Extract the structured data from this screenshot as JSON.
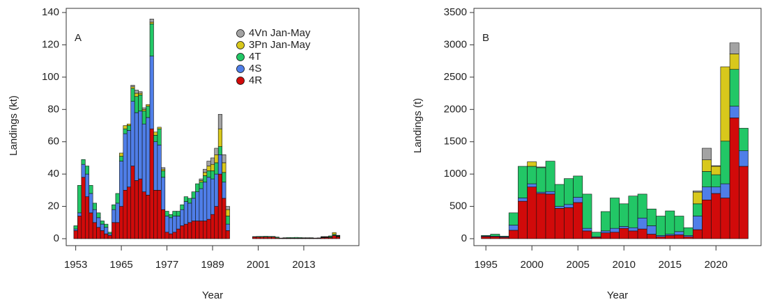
{
  "chart_data": [
    {
      "type": "bar",
      "stacked": true,
      "annotation": "A",
      "xlabel": "Year",
      "ylabel": "Landings (kt)",
      "legend": "top-right",
      "x": [
        1953,
        1954,
        1955,
        1956,
        1957,
        1958,
        1959,
        1960,
        1961,
        1962,
        1963,
        1964,
        1965,
        1966,
        1967,
        1968,
        1969,
        1970,
        1971,
        1972,
        1973,
        1974,
        1975,
        1976,
        1977,
        1978,
        1979,
        1980,
        1981,
        1982,
        1983,
        1984,
        1985,
        1986,
        1987,
        1988,
        1989,
        1990,
        1991,
        1992,
        1993,
        1994,
        1995,
        1996,
        1997,
        1998,
        1999,
        2000,
        2001,
        2002,
        2003,
        2004,
        2005,
        2006,
        2007,
        2008,
        2009,
        2010,
        2011,
        2012,
        2013,
        2014,
        2015,
        2016,
        2017,
        2018,
        2019,
        2020,
        2021,
        2022
      ],
      "xlim": [
        1950.5,
        2027.5
      ],
      "xticks": [
        1953,
        1965,
        1977,
        1989,
        2001,
        2013
      ],
      "ylim": [
        0,
        140
      ],
      "yticks": [
        0,
        20,
        40,
        60,
        80,
        100,
        120,
        140
      ],
      "series": [
        {
          "name": "4R",
          "color": "#d10a0a",
          "values": [
            5,
            14,
            38,
            26,
            16,
            10,
            7,
            5,
            3,
            2,
            10,
            10,
            20,
            30,
            32,
            45,
            36,
            37,
            29,
            27,
            68,
            30,
            30,
            18,
            4,
            3,
            4,
            6,
            8,
            9,
            10,
            11,
            11,
            11,
            11,
            12,
            15,
            20,
            40,
            25,
            5,
            null,
            null,
            null,
            null,
            null,
            null,
            1,
            1,
            1,
            1,
            1,
            1,
            0.5,
            0.3,
            0.3,
            0.3,
            0.3,
            0.3,
            0.3,
            0.3,
            0.3,
            0.3,
            0.3,
            0.3,
            0.6,
            0.7,
            0.7,
            1.9,
            1.1
          ]
        },
        {
          "name": "4S",
          "color": "#4f7ee8",
          "values": [
            1,
            2,
            8,
            14,
            12,
            8,
            6,
            4,
            4,
            1,
            8,
            12,
            28,
            35,
            35,
            40,
            42,
            42,
            42,
            48,
            45,
            30,
            28,
            20,
            10,
            10,
            10,
            8,
            10,
            14,
            12,
            14,
            18,
            20,
            24,
            26,
            22,
            20,
            12,
            10,
            4,
            null,
            null,
            null,
            null,
            null,
            null,
            0,
            0,
            0,
            0,
            0,
            0,
            0,
            0,
            0,
            0,
            0,
            0,
            0,
            0,
            0,
            0,
            0,
            0,
            0.2,
            0.1,
            0.2,
            0.2,
            0.2
          ]
        },
        {
          "name": "4T",
          "color": "#22c766",
          "values": [
            2,
            17,
            3,
            5,
            5,
            4,
            3,
            2,
            2,
            1,
            3,
            6,
            3,
            3,
            3,
            8,
            10,
            10,
            8,
            7,
            20,
            4,
            10,
            4,
            3,
            2,
            3,
            3,
            3,
            3,
            3,
            4,
            5,
            4,
            4,
            4,
            5,
            7,
            5,
            6,
            5,
            null,
            null,
            null,
            null,
            null,
            null,
            0.3,
            0.4,
            0.4,
            0.5,
            0.4,
            0.4,
            0.5,
            0.1,
            0.3,
            0.4,
            0.4,
            0.5,
            0.4,
            0.3,
            0.3,
            0.3,
            0.1,
            0.2,
            0.3,
            0.2,
            0.7,
            0.6,
            0.4
          ]
        },
        {
          "name": "3Pn Jan-May",
          "color": "#d8c81c",
          "values": [
            0,
            0,
            0,
            0,
            0,
            0,
            0,
            0,
            0,
            0,
            0,
            0,
            2,
            2,
            1,
            1,
            2,
            1,
            1,
            1,
            1,
            2,
            1,
            1,
            0,
            0,
            0,
            0,
            0,
            0,
            0,
            0,
            0,
            1,
            2,
            3,
            4,
            5,
            11,
            6,
            4,
            null,
            null,
            null,
            null,
            null,
            null,
            0,
            0,
            0,
            0,
            0,
            0,
            0,
            0,
            0,
            0,
            0,
            0,
            0,
            0,
            0,
            0,
            0,
            0,
            0.2,
            0.1,
            0.1,
            1.1,
            0.2
          ]
        },
        {
          "name": "4Vn Jan-May",
          "color": "#a3a3a3",
          "values": [
            0,
            0,
            0,
            0,
            0,
            0,
            0,
            0,
            0,
            0,
            0,
            0,
            0,
            0,
            0,
            1,
            2,
            1,
            1,
            0,
            2,
            0,
            0,
            1,
            0,
            0,
            0,
            0,
            0,
            0,
            0,
            0,
            0,
            1,
            2,
            3,
            4,
            4,
            9,
            5,
            2,
            null,
            null,
            null,
            null,
            null,
            null,
            0,
            0,
            0,
            0,
            0,
            0,
            0,
            0,
            0,
            0,
            0,
            0,
            0,
            0,
            0,
            0,
            0,
            0,
            0,
            0.2,
            0,
            0,
            0.2
          ]
        }
      ]
    },
    {
      "type": "bar",
      "stacked": true,
      "annotation": "B",
      "xlabel": "Year",
      "ylabel": "Landings (t)",
      "x": [
        1995,
        1996,
        1997,
        1998,
        1999,
        2000,
        2001,
        2002,
        2003,
        2004,
        2005,
        2006,
        2007,
        2008,
        2009,
        2010,
        2011,
        2012,
        2013,
        2014,
        2015,
        2016,
        2017,
        2018,
        2019,
        2020,
        2021,
        2022,
        2023
      ],
      "xlim": [
        1993.7,
        2024.9
      ],
      "xticks": [
        1995,
        2000,
        2005,
        2010,
        2015,
        2020
      ],
      "ylim": [
        0,
        3500
      ],
      "yticks": [
        0,
        500,
        1000,
        1500,
        2000,
        2500,
        3000,
        3500
      ],
      "series": [
        {
          "name": "4R",
          "color": "#d10a0a",
          "values": [
            30,
            30,
            20,
            130,
            580,
            800,
            700,
            690,
            470,
            480,
            560,
            120,
            20,
            90,
            100,
            160,
            120,
            150,
            70,
            30,
            50,
            60,
            30,
            140,
            600,
            700,
            630,
            1870,
            1120
          ]
        },
        {
          "name": "4S",
          "color": "#4f7ee8",
          "values": [
            10,
            10,
            10,
            80,
            50,
            50,
            20,
            40,
            30,
            50,
            80,
            40,
            10,
            30,
            60,
            30,
            50,
            170,
            130,
            20,
            20,
            50,
            20,
            210,
            200,
            100,
            220,
            180,
            240
          ]
        },
        {
          "name": "4T",
          "color": "#22c766",
          "values": [
            10,
            30,
            10,
            190,
            490,
            270,
            380,
            470,
            340,
            400,
            330,
            530,
            70,
            300,
            470,
            350,
            490,
            370,
            260,
            300,
            360,
            240,
            120,
            190,
            240,
            190,
            660,
            570,
            350
          ]
        },
        {
          "name": "3Pn Jan-May",
          "color": "#d8c81c",
          "values": [
            0,
            0,
            0,
            0,
            0,
            70,
            0,
            0,
            0,
            0,
            0,
            0,
            0,
            0,
            0,
            0,
            0,
            0,
            0,
            0,
            0,
            0,
            0,
            180,
            180,
            130,
            1150,
            240,
            0
          ]
        },
        {
          "name": "4Vn Jan-May",
          "color": "#a3a3a3",
          "values": [
            0,
            0,
            0,
            0,
            0,
            0,
            10,
            0,
            0,
            0,
            0,
            0,
            0,
            0,
            0,
            0,
            0,
            0,
            0,
            0,
            0,
            0,
            0,
            20,
            180,
            10,
            0,
            170,
            0
          ]
        }
      ]
    }
  ]
}
